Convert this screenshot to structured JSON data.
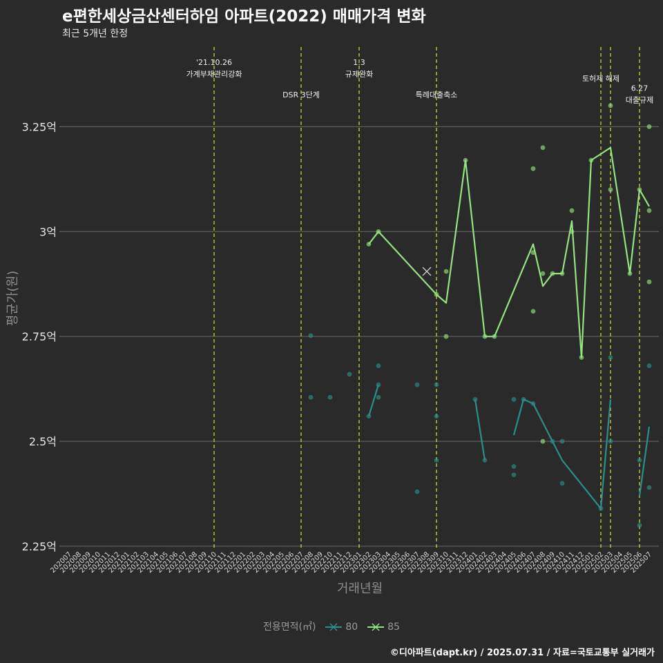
{
  "title": "e편한세상금산센터하임 아파트(2022) 매매가격 변화",
  "subtitle": "최근 5개년 한정",
  "caption": "©디아파트(dapt.kr) / 2025.07.31 / 자료=국토교통부 실거래가",
  "chart_data": {
    "type": "line",
    "xlabel": "거래년월",
    "ylabel": "평균가(원)",
    "x_ticks": [
      "202007",
      "202008",
      "202009",
      "202010",
      "202011",
      "202012",
      "202101",
      "202102",
      "202103",
      "202104",
      "202105",
      "202106",
      "202107",
      "202108",
      "202109",
      "202110",
      "202111",
      "202112",
      "202201",
      "202202",
      "202203",
      "202204",
      "202205",
      "202206",
      "202207",
      "202208",
      "202209",
      "202210",
      "202211",
      "202212",
      "202301",
      "202302",
      "202303",
      "202304",
      "202305",
      "202306",
      "202307",
      "202308",
      "202309",
      "202310",
      "202311",
      "202312",
      "202401",
      "202402",
      "202403",
      "202404",
      "202405",
      "202406",
      "202407",
      "202408",
      "202409",
      "202410",
      "202411",
      "202412",
      "202501",
      "202502",
      "202503",
      "202504",
      "202505",
      "202506",
      "202507"
    ],
    "y_ticks": [
      {
        "value": 2.25,
        "label": "2.25억"
      },
      {
        "value": 2.5,
        "label": "2.5억"
      },
      {
        "value": 2.75,
        "label": "2.75억"
      },
      {
        "value": 3.0,
        "label": "3억"
      },
      {
        "value": 3.25,
        "label": "3.25억"
      }
    ],
    "ylim": [
      2.24,
      3.44
    ],
    "grid": true,
    "legend": {
      "title": "전용면적(㎡)",
      "position": "bottom"
    },
    "colors": {
      "80": "#2a8f8a",
      "85": "#93e47f",
      "event_line": "#d9e03a"
    },
    "events": [
      {
        "x": "202110",
        "lines": [
          "'21.10.26",
          "가계부채관리강화"
        ],
        "row": 1
      },
      {
        "x": "202207",
        "lines": [
          "DSR 3단계"
        ],
        "row": 3
      },
      {
        "x": "202301",
        "lines": [
          "1.3",
          "규제완화"
        ],
        "row": 1
      },
      {
        "x": "202309",
        "lines": [
          "특례대출축소"
        ],
        "row": 3
      },
      {
        "x": "202502",
        "lines": [
          "토허제 해제"
        ],
        "row": 2
      },
      {
        "x": "202503",
        "lines": [],
        "row": 0
      },
      {
        "x": "202506",
        "lines": [
          "6.27",
          "대출규제"
        ],
        "row": 2.6
      }
    ],
    "series": [
      {
        "name": "80",
        "line_segments": [
          [
            [
              "202302",
              2.56
            ],
            [
              "202303",
              2.635
            ]
          ],
          [
            [
              "202401",
              2.6
            ],
            [
              "202402",
              2.455
            ]
          ],
          [
            [
              "202405",
              2.515
            ],
            [
              "202406",
              2.6
            ],
            [
              "202407",
              2.59
            ],
            [
              "202409",
              2.5
            ],
            [
              "202410",
              2.455
            ],
            [
              "202502",
              2.34
            ],
            [
              "202503",
              2.6
            ]
          ],
          [
            [
              "202506",
              2.37
            ],
            [
              "202507",
              2.535
            ]
          ]
        ],
        "points": [
          [
            "202208",
            2.752
          ],
          [
            "202208",
            2.605
          ],
          [
            "202210",
            2.605
          ],
          [
            "202212",
            2.66
          ],
          [
            "202302",
            2.56
          ],
          [
            "202303",
            2.68
          ],
          [
            "202303",
            2.635
          ],
          [
            "202303",
            2.605
          ],
          [
            "202307",
            2.635
          ],
          [
            "202307",
            2.38
          ],
          [
            "202309",
            2.635
          ],
          [
            "202309",
            2.56
          ],
          [
            "202309",
            2.455
          ],
          [
            "202401",
            2.6
          ],
          [
            "202402",
            2.455
          ],
          [
            "202405",
            2.6
          ],
          [
            "202405",
            2.44
          ],
          [
            "202405",
            2.42
          ],
          [
            "202406",
            2.6
          ],
          [
            "202407",
            2.59
          ],
          [
            "202409",
            2.5
          ],
          [
            "202410",
            2.5
          ],
          [
            "202410",
            2.4
          ],
          [
            "202502",
            2.34
          ],
          [
            "202503",
            2.7
          ],
          [
            "202503",
            2.5
          ],
          [
            "202506",
            2.455
          ],
          [
            "202506",
            2.3
          ],
          [
            "202507",
            2.68
          ],
          [
            "202507",
            2.39
          ]
        ]
      },
      {
        "name": "85",
        "line_segments": [
          [
            [
              "202302",
              2.97
            ],
            [
              "202303",
              3.0
            ],
            [
              "202309",
              2.85
            ],
            [
              "202310",
              2.83
            ],
            [
              "202312",
              3.17
            ],
            [
              "202402",
              2.75
            ],
            [
              "202403",
              2.75
            ],
            [
              "202407",
              2.97
            ],
            [
              "202408",
              2.87
            ],
            [
              "202409",
              2.9
            ],
            [
              "202410",
              2.9
            ],
            [
              "202411",
              3.025
            ],
            [
              "202412",
              2.7
            ],
            [
              "202501",
              3.17
            ],
            [
              "202503",
              3.2
            ],
            [
              "202505",
              2.9
            ],
            [
              "202506",
              3.1
            ],
            [
              "202507",
              3.06
            ]
          ]
        ],
        "points": [
          [
            "202302",
            2.97
          ],
          [
            "202303",
            3.0
          ],
          [
            "202309",
            2.85
          ],
          [
            "202310",
            2.905
          ],
          [
            "202310",
            2.75
          ],
          [
            "202312",
            3.17
          ],
          [
            "202402",
            2.75
          ],
          [
            "202403",
            2.75
          ],
          [
            "202407",
            3.15
          ],
          [
            "202407",
            2.95
          ],
          [
            "202407",
            2.81
          ],
          [
            "202408",
            3.2
          ],
          [
            "202408",
            2.9
          ],
          [
            "202408",
            2.5
          ],
          [
            "202409",
            2.9
          ],
          [
            "202410",
            2.9
          ],
          [
            "202411",
            3.05
          ],
          [
            "202411",
            3.0
          ],
          [
            "202412",
            2.7
          ],
          [
            "202501",
            3.17
          ],
          [
            "202503",
            3.3
          ],
          [
            "202503",
            3.1
          ],
          [
            "202505",
            2.9
          ],
          [
            "202506",
            3.1
          ],
          [
            "202507",
            3.25
          ],
          [
            "202507",
            3.05
          ],
          [
            "202507",
            2.88
          ]
        ]
      }
    ],
    "highlight": {
      "series": "85",
      "x": "202308",
      "y": 2.905
    }
  }
}
